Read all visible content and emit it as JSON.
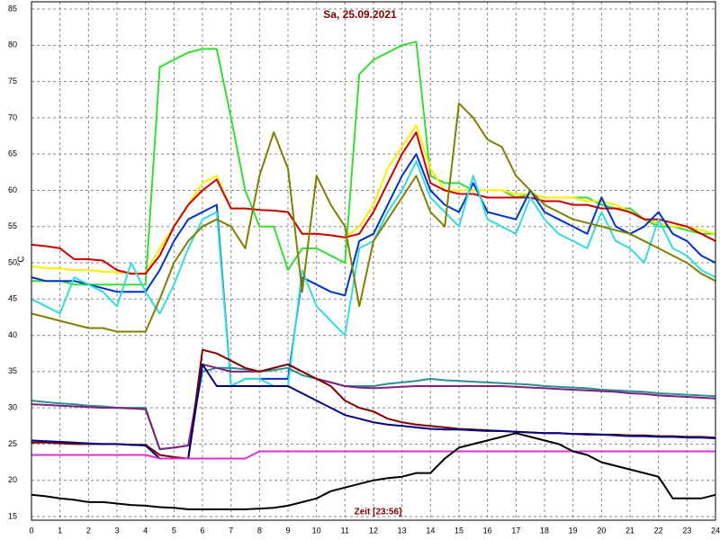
{
  "chart_data": {
    "type": "line",
    "title": "Sa, 25.09.2021",
    "x_label": "Zeit [23:56]",
    "y_label": "°C",
    "x": [
      0,
      0.5,
      1,
      1.5,
      2,
      2.5,
      3,
      3.5,
      4,
      4.5,
      5,
      5.5,
      6,
      6.5,
      7,
      7.5,
      8,
      8.5,
      9,
      9.5,
      10,
      10.5,
      11,
      11.5,
      12,
      12.5,
      13,
      13.5,
      14,
      14.5,
      15,
      15.5,
      16,
      16.5,
      17,
      17.5,
      18,
      18.5,
      19,
      19.5,
      20,
      20.5,
      21,
      21.5,
      22,
      22.5,
      23,
      23.5,
      24
    ],
    "xlim": [
      0,
      24
    ],
    "ylim": [
      14.5,
      86
    ],
    "xticks": [
      0,
      1,
      2,
      3,
      4,
      5,
      6,
      7,
      8,
      9,
      10,
      11,
      12,
      13,
      14,
      15,
      16,
      17,
      18,
      19,
      20,
      21,
      22,
      23,
      24
    ],
    "yticks": [
      15,
      20,
      25,
      30,
      35,
      40,
      45,
      50,
      55,
      60,
      65,
      70,
      75,
      80,
      85
    ],
    "grid": true,
    "series": [
      {
        "color": "#33dd33",
        "values": [
          47.5,
          47.5,
          47.5,
          47,
          47,
          47,
          47,
          47,
          47,
          77,
          78,
          79,
          79.5,
          79.5,
          70,
          60,
          55,
          55,
          49,
          52,
          52,
          51,
          50,
          76,
          78,
          79,
          80,
          80.5,
          62,
          61,
          61,
          60,
          60,
          60,
          59,
          59.5,
          59,
          59,
          59,
          59,
          58,
          57.5,
          57.5,
          56,
          55,
          55,
          54.5,
          54,
          54
        ]
      },
      {
        "color": "#ffee00",
        "values": [
          49.5,
          49.3,
          49.2,
          49,
          49,
          48.8,
          48.7,
          48.6,
          48.5,
          52,
          55,
          58,
          61,
          62,
          57.5,
          57.5,
          57.3,
          57.2,
          57,
          54,
          54,
          53.8,
          53.5,
          55,
          58,
          63,
          66,
          69,
          63,
          60,
          60,
          60,
          60,
          60,
          59.5,
          59.5,
          59,
          59,
          59,
          58.5,
          58.5,
          58,
          57,
          56,
          55.5,
          55,
          55,
          54.5,
          54
        ]
      },
      {
        "color": "#cc0000",
        "values": [
          52.5,
          52.3,
          52,
          50.5,
          50.5,
          50.3,
          49,
          48.5,
          48.5,
          51,
          55,
          58,
          60,
          61.5,
          57.5,
          57.5,
          57.3,
          57.2,
          57,
          54,
          54,
          53.8,
          53.5,
          54,
          57,
          61,
          65,
          68,
          61,
          60,
          59.5,
          59.5,
          59,
          59,
          59,
          59,
          58.5,
          58.5,
          58,
          58,
          57.5,
          57.5,
          57,
          56,
          56,
          55.5,
          55,
          54,
          53
        ]
      },
      {
        "color": "#0033cc",
        "values": [
          48,
          47.5,
          47.5,
          47.5,
          47,
          46.5,
          46,
          46,
          46,
          49,
          53,
          56,
          57,
          58,
          33,
          34,
          34,
          34,
          34,
          48,
          47,
          46,
          45.5,
          53,
          54,
          58,
          62,
          65,
          60,
          58,
          57,
          61,
          57,
          56.5,
          56,
          60,
          57,
          56,
          55,
          54,
          59,
          55,
          54,
          55,
          57,
          54,
          53,
          51,
          50
        ]
      },
      {
        "color": "#33dddd",
        "values": [
          45,
          44,
          43,
          48,
          47,
          46,
          44,
          50,
          46,
          43,
          47,
          52,
          56,
          57,
          33,
          34,
          34,
          33,
          33,
          49,
          44,
          42,
          40,
          52,
          53,
          57,
          60,
          64,
          59,
          57,
          55,
          62,
          56,
          55,
          54,
          59,
          56,
          54,
          53,
          52,
          57,
          53,
          52,
          50,
          56,
          52,
          51,
          49,
          48
        ]
      },
      {
        "color": "#808000",
        "values": [
          43,
          42.5,
          42,
          41.5,
          41,
          41,
          40.5,
          40.5,
          40.5,
          45,
          50,
          53,
          55,
          56,
          55,
          52,
          62,
          68,
          63,
          46,
          62,
          58,
          55,
          44,
          53,
          56,
          59,
          62,
          57,
          55,
          72,
          70,
          67,
          66,
          62,
          60,
          58,
          57,
          56,
          55.5,
          55,
          54.5,
          54,
          53,
          52,
          51,
          50,
          48.5,
          47.5
        ]
      },
      {
        "color": "#2a9090",
        "values": [
          31,
          30.8,
          30.6,
          30.5,
          30.3,
          30.2,
          30,
          30,
          30,
          24.3,
          24.5,
          24.8,
          35,
          35.5,
          35.5,
          35.3,
          35,
          35.2,
          35.5,
          34.5,
          34,
          33.5,
          33,
          33,
          33,
          33.3,
          33.5,
          33.7,
          34,
          33.8,
          33.7,
          33.6,
          33.5,
          33.4,
          33.3,
          33.2,
          33,
          32.9,
          32.8,
          32.7,
          32.5,
          32.4,
          32.3,
          32.2,
          32,
          31.9,
          31.8,
          31.7,
          31.6
        ]
      },
      {
        "color": "#802080",
        "values": [
          30.5,
          30.4,
          30.3,
          30.2,
          30.1,
          30,
          30,
          29.9,
          29.8,
          24.3,
          24.5,
          24.8,
          36,
          35.5,
          35,
          35,
          35,
          35.5,
          36,
          35,
          34,
          33.5,
          33,
          32.8,
          32.7,
          32.8,
          32.9,
          33,
          33,
          33,
          33,
          33,
          33,
          33,
          32.9,
          32.8,
          32.7,
          32.6,
          32.5,
          32.4,
          32.3,
          32.2,
          32,
          31.9,
          31.7,
          31.6,
          31.5,
          31.4,
          31.3
        ]
      },
      {
        "color": "#800000",
        "values": [
          25.2,
          25.2,
          25.1,
          25,
          25,
          25,
          25,
          24.9,
          24.9,
          23.5,
          23.2,
          23,
          38,
          37.5,
          36.5,
          35.5,
          35,
          35.5,
          36,
          35,
          34,
          33,
          31,
          30,
          29.5,
          28.5,
          28,
          27.7,
          27.5,
          27.3,
          27.1,
          27,
          26.9,
          26.8,
          26.7,
          26.6,
          26.5,
          26.5,
          26.4,
          26.4,
          26.3,
          26.3,
          26.2,
          26.2,
          26.1,
          26.1,
          26,
          26,
          25.9
        ]
      },
      {
        "color": "#000080",
        "values": [
          25.5,
          25.4,
          25.3,
          25.2,
          25.1,
          25,
          25,
          24.9,
          24.8,
          23,
          23,
          23,
          36,
          33,
          33,
          33,
          33,
          33,
          33,
          32,
          31,
          30,
          29,
          28.5,
          28,
          27.7,
          27.5,
          27.3,
          27.1,
          27,
          27,
          26.9,
          26.8,
          26.8,
          26.7,
          26.6,
          26.5,
          26.5,
          26.4,
          26.3,
          26.3,
          26.2,
          26.1,
          26.1,
          26,
          26,
          25.9,
          25.9,
          25.8
        ]
      },
      {
        "color": "#dd33dd",
        "values": [
          23.5,
          23.5,
          23.5,
          23.5,
          23.5,
          23.5,
          23.5,
          23.5,
          23.5,
          23,
          23,
          23,
          23,
          23,
          23,
          23,
          24,
          24,
          24,
          24,
          24,
          24,
          24,
          24,
          24,
          24,
          24,
          24,
          24,
          24,
          24,
          24,
          24,
          24,
          24,
          24,
          24,
          24,
          24,
          24,
          24,
          24,
          24,
          24,
          24,
          24,
          24,
          24,
          24
        ]
      },
      {
        "color": "#000000",
        "values": [
          18,
          17.8,
          17.5,
          17.3,
          17,
          17,
          16.8,
          16.6,
          16.5,
          16.3,
          16.2,
          16,
          16,
          16,
          16,
          16,
          16.1,
          16.2,
          16.5,
          17,
          17.5,
          18.5,
          19,
          19.5,
          20,
          20.3,
          20.5,
          21,
          21,
          23,
          24.5,
          25,
          25.5,
          26,
          26.5,
          26,
          25.5,
          25,
          24,
          23.5,
          22.5,
          22,
          21.5,
          21,
          20.5,
          17.5,
          17.5,
          17.5,
          18
        ]
      }
    ]
  }
}
